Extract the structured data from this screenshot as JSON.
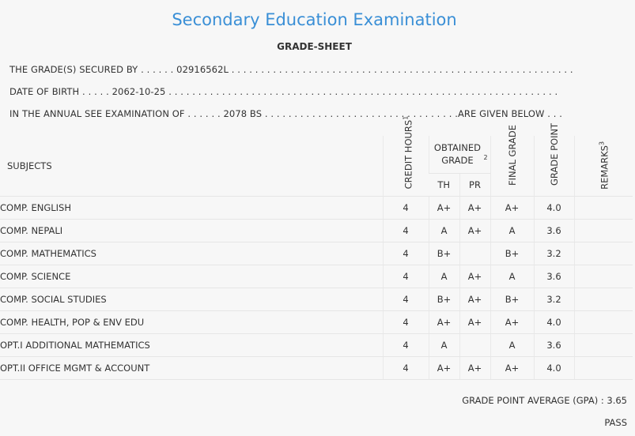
{
  "header": {
    "title": "Secondary Education Examination",
    "subtitle": "GRADE-SHEET"
  },
  "info": {
    "secured_by_label": "THE GRADE(S) SECURED BY . . . . . .",
    "symbol_no": "02916562L",
    "secured_by_dots": ". . . . . . . . . . . . . . . . . . . . . . . . . . . . . . . . . . . . . . . . . . . . . . . . . . . . . . . . . .",
    "dob_label": "DATE OF BIRTH . . . . .",
    "dob": "2062-10-25",
    "dob_dots": ". . . . . . . . . . . . . . . . . . . . . . . . . . . . . . . . . . . . . . . . . . . . . . . . . . . . . . . . . . . . . . . . . .",
    "exam_label": "IN THE ANNUAL SEE EXAMINATION OF . . . . . .",
    "exam_year": "2078 BS",
    "exam_dots": ". . . . . . . . . . . . . . . . . . . . . . . . . . . . . . . . .",
    "exam_suffix": "ARE GIVEN BELOW . . ."
  },
  "table": {
    "headers": {
      "subjects": "SUBJECTS",
      "credit_hours": "CREDIT HOURS",
      "credit_hours_sup": "1",
      "obtained_grade": "OBTAINED GRADE",
      "obtained_grade_sup": "2",
      "th": "TH",
      "pr": "PR",
      "final_grade": "FINAL GRADE",
      "grade_point": "GRADE POINT",
      "remarks": "REMARKS",
      "remarks_sup": "3"
    },
    "rows": [
      {
        "subject": "COMP. ENGLISH",
        "credit": "4",
        "th": "A+",
        "pr": "A+",
        "final": "A+",
        "gp": "4.0",
        "remarks": ""
      },
      {
        "subject": "COMP. NEPALI",
        "credit": "4",
        "th": "A",
        "pr": "A+",
        "final": "A",
        "gp": "3.6",
        "remarks": ""
      },
      {
        "subject": "COMP. MATHEMATICS",
        "credit": "4",
        "th": "B+",
        "pr": "",
        "final": "B+",
        "gp": "3.2",
        "remarks": ""
      },
      {
        "subject": "COMP. SCIENCE",
        "credit": "4",
        "th": "A",
        "pr": "A+",
        "final": "A",
        "gp": "3.6",
        "remarks": ""
      },
      {
        "subject": "COMP. SOCIAL STUDIES",
        "credit": "4",
        "th": "B+",
        "pr": "A+",
        "final": "B+",
        "gp": "3.2",
        "remarks": ""
      },
      {
        "subject": "COMP. HEALTH, POP & ENV EDU",
        "credit": "4",
        "th": "A+",
        "pr": "A+",
        "final": "A+",
        "gp": "4.0",
        "remarks": ""
      },
      {
        "subject": "OPT.I ADDITIONAL MATHEMATICS",
        "credit": "4",
        "th": "A",
        "pr": "",
        "final": "A",
        "gp": "3.6",
        "remarks": ""
      },
      {
        "subject": "OPT.II OFFICE MGMT & ACCOUNT",
        "credit": "4",
        "th": "A+",
        "pr": "A+",
        "final": "A+",
        "gp": "4.0",
        "remarks": ""
      }
    ]
  },
  "summary": {
    "gpa_label": "GRADE POINT AVERAGE (GPA) :",
    "gpa": "3.65",
    "result": "PASS"
  },
  "colors": {
    "title": "#3a8fd6",
    "background": "#f7f7f7",
    "text": "#333333"
  }
}
